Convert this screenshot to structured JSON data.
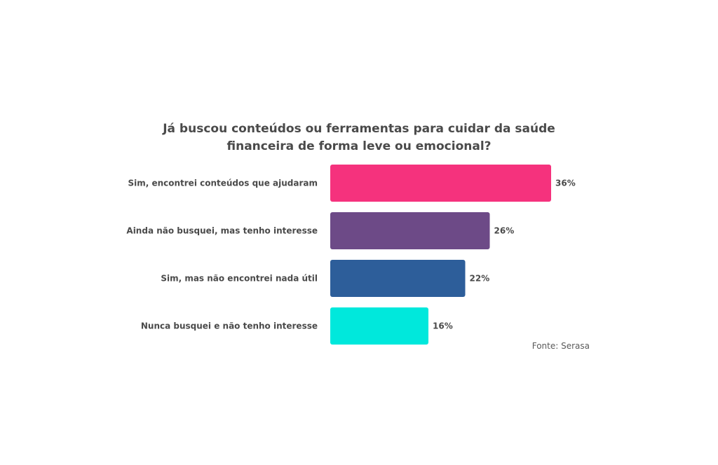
{
  "chart_data": {
    "type": "bar",
    "orientation": "horizontal",
    "title_lines": [
      "Já buscou conteúdos ou ferramentas para cuidar da saúde",
      "financeira de forma leve ou emocional?"
    ],
    "categories": [
      "Sim, encontrei conteúdos que ajudaram",
      "Ainda não busquei, mas tenho interesse",
      "Sim, mas não encontrei nada útil",
      "Nunca busquei e não tenho interesse"
    ],
    "values": [
      36,
      26,
      22,
      16
    ],
    "value_labels": [
      "36%",
      "26%",
      "22%",
      "16%"
    ],
    "colors": [
      "#f5327d",
      "#6d4a87",
      "#2d5e9a",
      "#00e8dc"
    ],
    "grid": false,
    "legend": "none",
    "source": "Fonte: Serasa"
  }
}
